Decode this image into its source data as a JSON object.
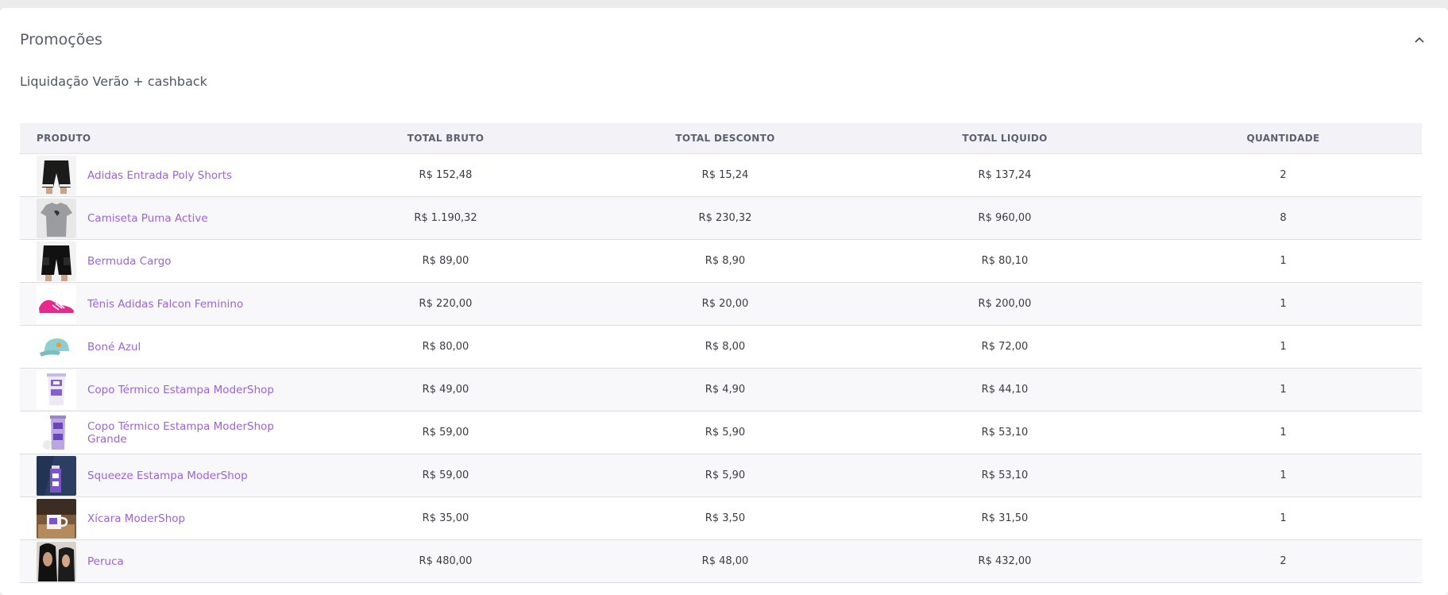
{
  "header": {
    "title": "Promoções"
  },
  "promotion": {
    "name": "Liquidação Verão + cashback"
  },
  "table": {
    "columns": [
      "PRODUTO",
      "TOTAL BRUTO",
      "TOTAL DESCONTO",
      "TOTAL LIQUIDO",
      "QUANTIDADE"
    ],
    "rows": [
      {
        "product": "Adidas Entrada Poly Shorts",
        "bruto": "R$ 152,48",
        "desconto": "R$ 15,24",
        "liquido": "R$ 137,24",
        "qtd": "2",
        "thumb": "shorts-black"
      },
      {
        "product": "Camiseta Puma Active",
        "bruto": "R$ 1.190,32",
        "desconto": "R$ 230,32",
        "liquido": "R$ 960,00",
        "qtd": "8",
        "thumb": "tshirt-gray"
      },
      {
        "product": "Bermuda Cargo",
        "bruto": "R$ 89,00",
        "desconto": "R$ 8,90",
        "liquido": "R$ 80,10",
        "qtd": "1",
        "thumb": "shorts-cargo"
      },
      {
        "product": "Tênis Adidas Falcon Feminino",
        "bruto": "R$ 220,00",
        "desconto": "R$ 20,00",
        "liquido": "R$ 200,00",
        "qtd": "1",
        "thumb": "sneaker-pink"
      },
      {
        "product": "Boné Azul",
        "bruto": "R$ 80,00",
        "desconto": "R$ 8,00",
        "liquido": "R$ 72,00",
        "qtd": "1",
        "thumb": "cap-blue"
      },
      {
        "product": "Copo Térmico Estampa ModerShop",
        "bruto": "R$ 49,00",
        "desconto": "R$ 4,90",
        "liquido": "R$ 44,10",
        "qtd": "1",
        "thumb": "cup-purple"
      },
      {
        "product": "Copo Térmico Estampa ModerShop Grande",
        "bruto": "R$ 59,00",
        "desconto": "R$ 5,90",
        "liquido": "R$ 53,10",
        "qtd": "1",
        "thumb": "cup-large"
      },
      {
        "product": "Squeeze Estampa ModerShop",
        "bruto": "R$ 59,00",
        "desconto": "R$ 5,90",
        "liquido": "R$ 53,10",
        "qtd": "1",
        "thumb": "squeeze"
      },
      {
        "product": "Xícara ModerShop",
        "bruto": "R$ 35,00",
        "desconto": "R$ 3,50",
        "liquido": "R$ 31,50",
        "qtd": "1",
        "thumb": "mug"
      },
      {
        "product": "Peruca",
        "bruto": "R$ 480,00",
        "desconto": "R$ 48,00",
        "liquido": "R$ 432,00",
        "qtd": "2",
        "thumb": "wig"
      }
    ]
  },
  "icons": {
    "collapse": "chevron-up-icon"
  },
  "colors": {
    "link": "#9a63d6",
    "header_bg": "#f3f3f7"
  }
}
